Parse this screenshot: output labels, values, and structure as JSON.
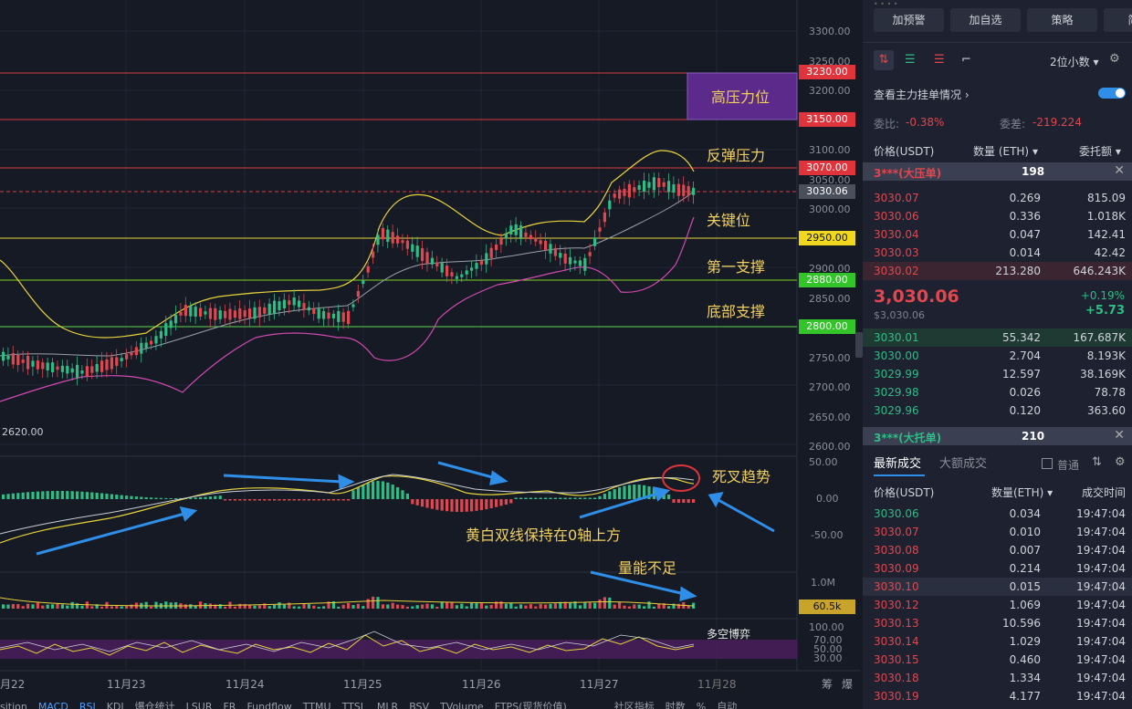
{
  "chart": {
    "price_axis": [
      "3300.00",
      "3250.00",
      "3200.00",
      "3150.00",
      "3100.00",
      "3050.00",
      "3000.00",
      "2950.00",
      "2900.00",
      "2850.00",
      "2800.00",
      "2750.00",
      "2700.00",
      "2650.00",
      "2600.00"
    ],
    "tags": {
      "t3230": "3230.00",
      "t3150": "3150.00",
      "t3070": "3070.00",
      "t3030": "3030.06",
      "t2950": "2950.00",
      "t2880": "2880.00",
      "t2800": "2800.00",
      "vol": "60.5k"
    },
    "low_label": "2620.00",
    "macd_axis": [
      "50.00",
      "0.00",
      "-50.00"
    ],
    "vol_axis": "1.0M",
    "rsi_axis": [
      "100.00",
      "70.00",
      "50.00",
      "30.00"
    ],
    "dates": [
      "月22",
      "11月23",
      "11月24",
      "11月25",
      "11月26",
      "11月27",
      "11月28"
    ],
    "annotations": {
      "high_pressure": "高压力位",
      "rebound_pressure": "反弹压力",
      "key_level": "关键位",
      "first_support": "第一支撑",
      "bottom_support": "底部支撑",
      "death_cross": "死叉趋势",
      "above_zero": "黄白双线保持在0轴上方",
      "low_volume": "量能不足",
      "bull_bear": "多空博弈"
    },
    "corner": [
      "筹",
      "爆"
    ],
    "bottom_tabs": [
      "sition",
      "MACD",
      "RSI",
      "KDJ",
      "爆仓统计",
      "LSUR",
      "FR",
      "Fundflow",
      "TTMU",
      "TTSL",
      "MLR",
      "BSV",
      "TVolume",
      "FTPS(现货价值)"
    ],
    "bottom_right": [
      "社区指标",
      "时数",
      "%",
      "自动"
    ]
  },
  "panel": {
    "buttons": [
      "加预警",
      "加自选",
      "策略",
      "简况"
    ],
    "decimals": "2位小数",
    "order_summary": "查看主力挂单情况",
    "ratio_label": "委比:",
    "ratio_value": "-0.38%",
    "diff_label": "委差:",
    "diff_value": "-219.224",
    "headers": {
      "price": "价格(USDT)",
      "qty": "数量 (ETH)",
      "total": "委托额"
    },
    "big_ask": {
      "label": "3***(大压单)",
      "qty": "198"
    },
    "asks": [
      {
        "p": "3030.07",
        "q": "0.269",
        "t": "815.09"
      },
      {
        "p": "3030.06",
        "q": "0.336",
        "t": "1.018K"
      },
      {
        "p": "3030.04",
        "q": "0.047",
        "t": "142.41"
      },
      {
        "p": "3030.03",
        "q": "0.014",
        "t": "42.42"
      },
      {
        "p": "3030.02",
        "q": "213.280",
        "t": "646.243K"
      }
    ],
    "last_price": "3,030.06",
    "last_price_sub": "$3,030.06",
    "change_pct": "+0.19%",
    "change_abs": "+5.73",
    "bids": [
      {
        "p": "3030.01",
        "q": "55.342",
        "t": "167.687K"
      },
      {
        "p": "3030.00",
        "q": "2.704",
        "t": "8.193K"
      },
      {
        "p": "3029.99",
        "q": "12.597",
        "t": "38.169K"
      },
      {
        "p": "3029.98",
        "q": "0.026",
        "t": "78.78"
      },
      {
        "p": "3029.96",
        "q": "0.120",
        "t": "363.60"
      }
    ],
    "big_bid": {
      "label": "3***(大托单)",
      "qty": "210"
    },
    "trades_tab": "最新成交",
    "big_trades_tab": "大额成交",
    "normal_label": "普通",
    "trade_headers": {
      "price": "价格(USDT)",
      "qty": "数量(ETH)",
      "time": "成交时间"
    },
    "trades": [
      {
        "p": "3030.06",
        "q": "0.034",
        "t": "19:47:04",
        "side": "buy"
      },
      {
        "p": "3030.07",
        "q": "0.010",
        "t": "19:47:04",
        "side": "sell"
      },
      {
        "p": "3030.08",
        "q": "0.007",
        "t": "19:47:04",
        "side": "sell"
      },
      {
        "p": "3030.09",
        "q": "0.214",
        "t": "19:47:04",
        "side": "sell"
      },
      {
        "p": "3030.10",
        "q": "0.015",
        "t": "19:47:04",
        "side": "sell"
      },
      {
        "p": "3030.12",
        "q": "1.069",
        "t": "19:47:04",
        "side": "sell"
      },
      {
        "p": "3030.13",
        "q": "10.596",
        "t": "19:47:04",
        "side": "sell"
      },
      {
        "p": "3030.14",
        "q": "1.029",
        "t": "19:47:04",
        "side": "sell"
      },
      {
        "p": "3030.15",
        "q": "0.460",
        "t": "19:47:04",
        "side": "sell"
      },
      {
        "p": "3030.18",
        "q": "1.334",
        "t": "19:47:04",
        "side": "sell"
      },
      {
        "p": "3030.19",
        "q": "4.177",
        "t": "19:47:04",
        "side": "sell"
      }
    ]
  }
}
